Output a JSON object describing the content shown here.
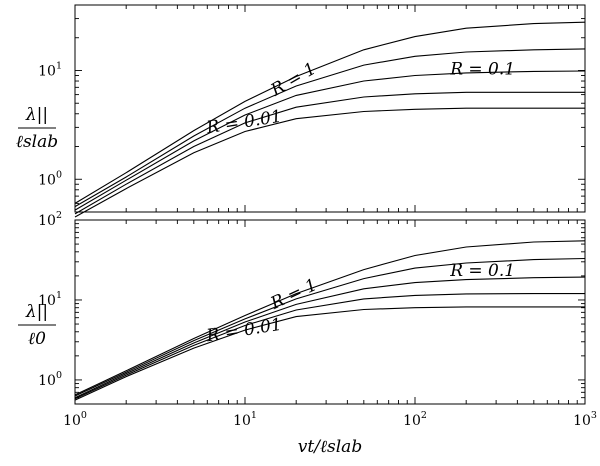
{
  "chart_data": [
    {
      "type": "line",
      "panel": "top",
      "xscale": "log",
      "yscale": "log",
      "xlim": [
        1,
        1000
      ],
      "ylim": [
        0.5,
        40
      ],
      "ytick_base": "10",
      "yticks": [
        {
          "value": 1,
          "exp": "0"
        },
        {
          "value": 10,
          "exp": "1"
        }
      ],
      "ylabel": {
        "num": "λ||",
        "den": "ℓslab"
      },
      "annotations": [
        {
          "text": "R = 1",
          "x": 20,
          "y": 7.5,
          "rotate": -30
        },
        {
          "text": "R = 0.1",
          "x": 250,
          "y": 9.2,
          "rotate": 0
        },
        {
          "text": "R = 0.01",
          "x": 10,
          "y": 3.0,
          "rotate": -9
        }
      ],
      "series": [
        {
          "x": [
            1,
            2,
            5,
            10,
            20,
            50,
            100,
            200,
            500,
            1000
          ],
          "y": [
            0.6,
            1.15,
            2.8,
            5.2,
            8.8,
            15.5,
            20.5,
            24.5,
            27,
            27.8
          ]
        },
        {
          "x": [
            1,
            2,
            5,
            10,
            20,
            50,
            100,
            200,
            500,
            1000
          ],
          "y": [
            0.56,
            1.05,
            2.5,
            4.5,
            7.2,
            11.2,
            13.5,
            14.8,
            15.5,
            15.8
          ]
        },
        {
          "x": [
            1,
            2,
            5,
            10,
            20,
            50,
            100,
            200,
            500,
            1000
          ],
          "y": [
            0.52,
            0.98,
            2.25,
            3.9,
            5.9,
            8.0,
            9.0,
            9.5,
            9.8,
            9.9
          ]
        },
        {
          "x": [
            1,
            2,
            5,
            10,
            20,
            50,
            100,
            200,
            500,
            1000
          ],
          "y": [
            0.48,
            0.9,
            2.0,
            3.3,
            4.6,
            5.7,
            6.1,
            6.3,
            6.3,
            6.3
          ]
        },
        {
          "x": [
            1,
            2,
            5,
            10,
            20,
            50,
            100,
            200,
            500,
            1000
          ],
          "y": [
            0.45,
            0.82,
            1.75,
            2.75,
            3.6,
            4.2,
            4.4,
            4.5,
            4.5,
            4.5
          ]
        }
      ]
    },
    {
      "type": "line",
      "panel": "bottom",
      "xscale": "log",
      "yscale": "log",
      "xlim": [
        1,
        1000
      ],
      "ylim": [
        0.5,
        100
      ],
      "xlabel": {
        "num": "vt",
        "den": "ℓslab"
      },
      "xtick_base": "10",
      "xticks": [
        {
          "value": 1,
          "exp": "0"
        },
        {
          "value": 10,
          "exp": "1"
        },
        {
          "value": 100,
          "exp": "2"
        },
        {
          "value": 1000,
          "exp": "3"
        }
      ],
      "ytick_base": "10",
      "yticks": [
        {
          "value": 1,
          "exp": "0"
        },
        {
          "value": 10,
          "exp": "1"
        },
        {
          "value": 100,
          "exp": "2"
        }
      ],
      "ylabel": {
        "num": "λ||",
        "den": "ℓ0"
      },
      "annotations": [
        {
          "text": "R = 1",
          "x": 20,
          "y": 10.3,
          "rotate": -25
        },
        {
          "text": "R = 0.1",
          "x": 250,
          "y": 20,
          "rotate": 0
        },
        {
          "text": "R = 0.01",
          "x": 10,
          "y": 3.6,
          "rotate": -9
        }
      ],
      "series": [
        {
          "x": [
            1,
            2,
            5,
            10,
            20,
            50,
            100,
            200,
            500,
            1000
          ],
          "y": [
            0.65,
            1.3,
            3.3,
            6.4,
            12,
            24,
            36,
            46,
            53,
            55
          ]
        },
        {
          "x": [
            1,
            2,
            5,
            10,
            20,
            50,
            100,
            200,
            500,
            1000
          ],
          "y": [
            0.63,
            1.25,
            3.1,
            5.8,
            10.3,
            18.5,
            25,
            29,
            32,
            33
          ]
        },
        {
          "x": [
            1,
            2,
            5,
            10,
            20,
            50,
            100,
            200,
            500,
            1000
          ],
          "y": [
            0.6,
            1.2,
            2.9,
            5.3,
            8.8,
            13.8,
            16.5,
            18,
            19,
            19.3
          ]
        },
        {
          "x": [
            1,
            2,
            5,
            10,
            20,
            50,
            100,
            200,
            500,
            1000
          ],
          "y": [
            0.58,
            1.15,
            2.7,
            4.8,
            7.5,
            10.3,
            11.4,
            11.9,
            12,
            12
          ]
        },
        {
          "x": [
            1,
            2,
            5,
            10,
            20,
            50,
            100,
            200,
            500,
            1000
          ],
          "y": [
            0.56,
            1.1,
            2.5,
            4.2,
            6.2,
            7.6,
            8.0,
            8.2,
            8.2,
            8.2
          ]
        }
      ]
    }
  ]
}
